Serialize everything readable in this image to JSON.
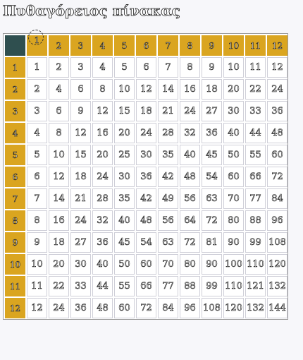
{
  "title": "Πυθαγόρειος πίνακας",
  "table": {
    "column_headers": [
      "1",
      "2",
      "3",
      "4",
      "5",
      "6",
      "7",
      "8",
      "9",
      "10",
      "11",
      "12"
    ],
    "rows": [
      {
        "header": "1",
        "cells": [
          "1",
          "2",
          "3",
          "4",
          "5",
          "6",
          "7",
          "8",
          "9",
          "10",
          "11",
          "12"
        ]
      },
      {
        "header": "2",
        "cells": [
          "2",
          "4",
          "6",
          "8",
          "10",
          "12",
          "14",
          "16",
          "18",
          "20",
          "22",
          "24"
        ]
      },
      {
        "header": "3",
        "cells": [
          "3",
          "6",
          "9",
          "12",
          "15",
          "18",
          "21",
          "24",
          "27",
          "30",
          "33",
          "36"
        ]
      },
      {
        "header": "4",
        "cells": [
          "4",
          "8",
          "12",
          "16",
          "20",
          "24",
          "28",
          "32",
          "36",
          "40",
          "44",
          "48"
        ]
      },
      {
        "header": "5",
        "cells": [
          "5",
          "10",
          "15",
          "20",
          "25",
          "30",
          "35",
          "40",
          "45",
          "50",
          "55",
          "60"
        ]
      },
      {
        "header": "6",
        "cells": [
          "6",
          "12",
          "18",
          "24",
          "30",
          "36",
          "42",
          "48",
          "54",
          "60",
          "66",
          "72"
        ]
      },
      {
        "header": "7",
        "cells": [
          "7",
          "14",
          "21",
          "28",
          "35",
          "42",
          "49",
          "56",
          "63",
          "70",
          "77",
          "84"
        ]
      },
      {
        "header": "8",
        "cells": [
          "8",
          "16",
          "24",
          "32",
          "40",
          "48",
          "56",
          "64",
          "72",
          "80",
          "88",
          "96"
        ]
      },
      {
        "header": "9",
        "cells": [
          "9",
          "18",
          "27",
          "36",
          "45",
          "54",
          "63",
          "72",
          "81",
          "90",
          "99",
          "108"
        ]
      },
      {
        "header": "10",
        "cells": [
          "10",
          "20",
          "30",
          "40",
          "50",
          "60",
          "70",
          "80",
          "90",
          "100",
          "110",
          "120"
        ]
      },
      {
        "header": "11",
        "cells": [
          "11",
          "22",
          "33",
          "44",
          "55",
          "66",
          "77",
          "88",
          "99",
          "110",
          "121",
          "132"
        ]
      },
      {
        "header": "12",
        "cells": [
          "12",
          "24",
          "36",
          "48",
          "60",
          "72",
          "84",
          "96",
          "108",
          "120",
          "132",
          "144"
        ]
      }
    ]
  },
  "colors": {
    "corner": "#2f4f4f",
    "header": "#daa520",
    "cell_background": "#ffffff"
  }
}
